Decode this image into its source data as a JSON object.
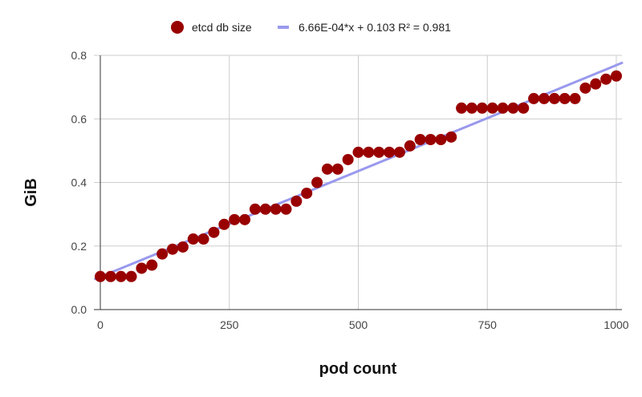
{
  "chart_data": {
    "type": "scatter",
    "title": "",
    "xlabel": "pod count",
    "ylabel": "GiB",
    "xlim": [
      0,
      1000
    ],
    "ylim": [
      0,
      0.8
    ],
    "x_ticks": [
      "0",
      "250",
      "500",
      "750",
      "1000"
    ],
    "y_ticks": [
      "0.0",
      "0.2",
      "0.4",
      "0.6",
      "0.8"
    ],
    "grid": true,
    "legend_position": "top",
    "series": [
      {
        "name": "etcd db size",
        "color": "#990000",
        "x": [
          0,
          20,
          40,
          60,
          80,
          100,
          120,
          140,
          160,
          180,
          200,
          220,
          240,
          260,
          280,
          300,
          320,
          340,
          360,
          380,
          400,
          420,
          440,
          460,
          480,
          500,
          520,
          540,
          560,
          580,
          600,
          620,
          640,
          660,
          680,
          700,
          720,
          740,
          760,
          780,
          800,
          820,
          840,
          860,
          880,
          900,
          920,
          940,
          960,
          980,
          1000
        ],
        "values": [
          0.104,
          0.104,
          0.104,
          0.104,
          0.13,
          0.14,
          0.175,
          0.19,
          0.197,
          0.222,
          0.222,
          0.243,
          0.268,
          0.283,
          0.283,
          0.316,
          0.316,
          0.316,
          0.316,
          0.341,
          0.366,
          0.4,
          0.442,
          0.442,
          0.472,
          0.495,
          0.495,
          0.495,
          0.495,
          0.495,
          0.515,
          0.535,
          0.535,
          0.535,
          0.543,
          0.634,
          0.634,
          0.634,
          0.634,
          0.634,
          0.634,
          0.634,
          0.664,
          0.664,
          0.664,
          0.664,
          0.664,
          0.697,
          0.71,
          0.725,
          0.735
        ]
      }
    ],
    "trendline": {
      "label": "6.66E-04*x + 0.103 R² = 0.981",
      "slope": 0.000666,
      "intercept": 0.103,
      "r_squared": 0.981,
      "color": "#9999ee"
    }
  },
  "legend": {
    "series_label": "etcd db size",
    "trend_label": "6.66E-04*x + 0.103 R² = 0.981"
  },
  "axes": {
    "x_title": "pod count",
    "y_title": "GiB"
  }
}
